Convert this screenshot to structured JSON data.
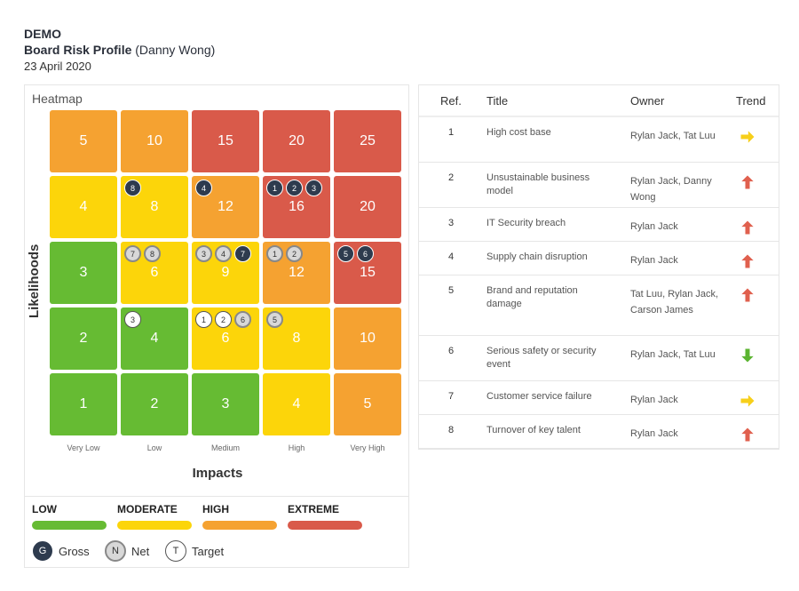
{
  "header": {
    "org": "DEMO",
    "title": "Board Risk Profile",
    "owner": "(Danny Wong)",
    "date": "23 April 2020"
  },
  "heatmap": {
    "title": "Heatmap",
    "y_label": "Likelihoods",
    "x_label": "Impacts",
    "x_ticks": [
      "Very Low",
      "Low",
      "Medium",
      "High",
      "Very High"
    ],
    "rows": [
      [
        {
          "v": "5",
          "lvl": "high"
        },
        {
          "v": "10",
          "lvl": "high"
        },
        {
          "v": "15",
          "lvl": "ext"
        },
        {
          "v": "20",
          "lvl": "ext"
        },
        {
          "v": "25",
          "lvl": "ext"
        }
      ],
      [
        {
          "v": "4",
          "lvl": "mod"
        },
        {
          "v": "8",
          "lvl": "mod"
        },
        {
          "v": "12",
          "lvl": "high"
        },
        {
          "v": "16",
          "lvl": "ext"
        },
        {
          "v": "20",
          "lvl": "ext"
        }
      ],
      [
        {
          "v": "3",
          "lvl": "low"
        },
        {
          "v": "6",
          "lvl": "mod"
        },
        {
          "v": "9",
          "lvl": "mod"
        },
        {
          "v": "12",
          "lvl": "high"
        },
        {
          "v": "15",
          "lvl": "ext"
        }
      ],
      [
        {
          "v": "2",
          "lvl": "low"
        },
        {
          "v": "4",
          "lvl": "low"
        },
        {
          "v": "6",
          "lvl": "mod"
        },
        {
          "v": "8",
          "lvl": "mod"
        },
        {
          "v": "10",
          "lvl": "high"
        }
      ],
      [
        {
          "v": "1",
          "lvl": "low"
        },
        {
          "v": "2",
          "lvl": "low"
        },
        {
          "v": "3",
          "lvl": "low"
        },
        {
          "v": "4",
          "lvl": "mod"
        },
        {
          "v": "5",
          "lvl": "high"
        }
      ]
    ],
    "markers": [
      {
        "row": 1,
        "col": 1,
        "items": [
          {
            "t": "gross",
            "n": "8"
          }
        ]
      },
      {
        "row": 1,
        "col": 2,
        "items": [
          {
            "t": "gross",
            "n": "4"
          }
        ]
      },
      {
        "row": 1,
        "col": 3,
        "items": [
          {
            "t": "gross",
            "n": "1"
          },
          {
            "t": "gross",
            "n": "2"
          },
          {
            "t": "gross",
            "n": "3"
          }
        ]
      },
      {
        "row": 2,
        "col": 1,
        "items": [
          {
            "t": "net",
            "n": "7"
          },
          {
            "t": "net",
            "n": "8"
          }
        ]
      },
      {
        "row": 2,
        "col": 2,
        "items": [
          {
            "t": "net",
            "n": "3"
          },
          {
            "t": "net",
            "n": "4"
          },
          {
            "t": "gross",
            "n": "7"
          }
        ]
      },
      {
        "row": 2,
        "col": 3,
        "items": [
          {
            "t": "net",
            "n": "1"
          },
          {
            "t": "net",
            "n": "2"
          }
        ]
      },
      {
        "row": 2,
        "col": 4,
        "items": [
          {
            "t": "gross",
            "n": "5"
          },
          {
            "t": "gross",
            "n": "6"
          }
        ]
      },
      {
        "row": 3,
        "col": 1,
        "items": [
          {
            "t": "target",
            "n": "3"
          }
        ]
      },
      {
        "row": 3,
        "col": 2,
        "items": [
          {
            "t": "target",
            "n": "1"
          },
          {
            "t": "target",
            "n": "2"
          },
          {
            "t": "net",
            "n": "6"
          }
        ]
      },
      {
        "row": 3,
        "col": 3,
        "items": [
          {
            "t": "net",
            "n": "5"
          }
        ]
      }
    ]
  },
  "legend": {
    "levels": [
      {
        "label": "LOW",
        "color": "#66bb33"
      },
      {
        "label": "MODERATE",
        "color": "#fcd50a"
      },
      {
        "label": "HIGH",
        "color": "#f5a231"
      },
      {
        "label": "EXTREME",
        "color": "#d95a4a"
      }
    ],
    "keys": [
      {
        "letter": "G",
        "label": "Gross",
        "t": "gross"
      },
      {
        "letter": "N",
        "label": "Net",
        "t": "net"
      },
      {
        "letter": "T",
        "label": "Target",
        "t": "target"
      }
    ]
  },
  "table": {
    "headers": {
      "ref": "Ref.",
      "title": "Title",
      "owner": "Owner",
      "trend": "Trend"
    },
    "rows": [
      {
        "ref": "1",
        "title": "High cost base",
        "owner": "Rylan Jack, Tat Luu",
        "trend": "right"
      },
      {
        "ref": "2",
        "title": "Unsustainable business model",
        "owner": "Rylan Jack, Danny Wong",
        "trend": "up"
      },
      {
        "ref": "3",
        "title": "IT Security breach",
        "owner": "Rylan Jack",
        "trend": "up"
      },
      {
        "ref": "4",
        "title": "Supply chain disruption",
        "owner": "Rylan Jack",
        "trend": "up"
      },
      {
        "ref": "5",
        "title": "Brand and reputation damage",
        "owner": "Tat Luu, Rylan Jack, Carson James",
        "trend": "up"
      },
      {
        "ref": "6",
        "title": "Serious safety or security event",
        "owner": "Rylan Jack, Tat Luu",
        "trend": "down"
      },
      {
        "ref": "7",
        "title": "Customer service failure",
        "owner": "Rylan Jack",
        "trend": "right"
      },
      {
        "ref": "8",
        "title": "Turnover of key talent",
        "owner": "Rylan Jack",
        "trend": "up"
      }
    ],
    "trend_colors": {
      "up": "#e0604e",
      "right": "#f7cf1a",
      "down": "#5bb431"
    }
  }
}
